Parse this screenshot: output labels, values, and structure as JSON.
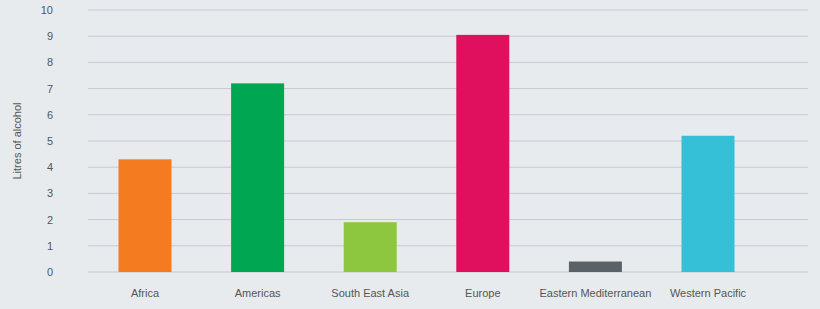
{
  "chart_data": {
    "type": "bar",
    "y_label": "Litres of alcohol",
    "categories": [
      "Africa",
      "Americas",
      "South East Asia",
      "Europe",
      "Eastern Mediterranean",
      "Western Pacific"
    ],
    "values": [
      4.3,
      7.2,
      1.9,
      9.05,
      0.4,
      5.2
    ],
    "colors": [
      "#f47b20",
      "#00a651",
      "#8dc63f",
      "#e0105f",
      "#5a6268",
      "#35c0d8"
    ],
    "ylim": [
      0,
      10
    ],
    "yticks": [
      0,
      1,
      2,
      3,
      4,
      5,
      6,
      7,
      8,
      9,
      10
    ],
    "grid": true
  }
}
